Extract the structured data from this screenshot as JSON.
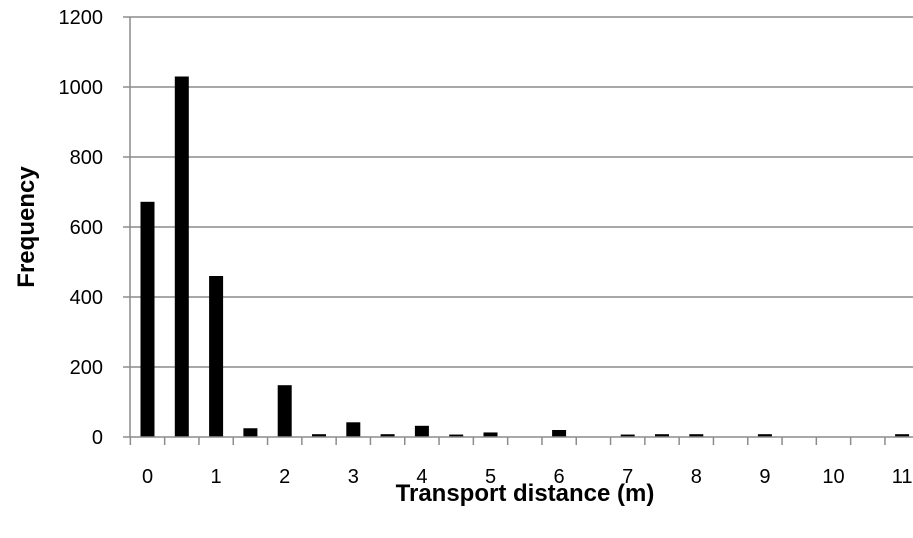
{
  "chart_data": {
    "type": "bar",
    "title": "",
    "xlabel": "Transport distance (m)",
    "ylabel": "Frequency",
    "ylim": [
      0,
      1200
    ],
    "yticks": [
      "0",
      "200",
      "400",
      "600",
      "800",
      "1000",
      "1200"
    ],
    "xticks": [
      "0",
      "1",
      "2",
      "3",
      "4",
      "5",
      "6",
      "7",
      "8",
      "9",
      "10",
      "11"
    ],
    "grid": true,
    "legend": "none",
    "bar_color": "#000000",
    "grid_color": "#8c8c8c",
    "categories": [
      "0",
      "0.5",
      "1",
      "1.5",
      "2",
      "2.5",
      "3",
      "3.5",
      "4",
      "4.5",
      "5",
      "5.5",
      "6",
      "6.5",
      "7",
      "7.5",
      "8",
      "8.5",
      "9",
      "9.5",
      "10",
      "10.5",
      "11"
    ],
    "values": [
      672,
      1030,
      460,
      25,
      148,
      8,
      42,
      8,
      32,
      7,
      13,
      0,
      20,
      0,
      7,
      8,
      8,
      0,
      8,
      0,
      0,
      0,
      8
    ]
  }
}
